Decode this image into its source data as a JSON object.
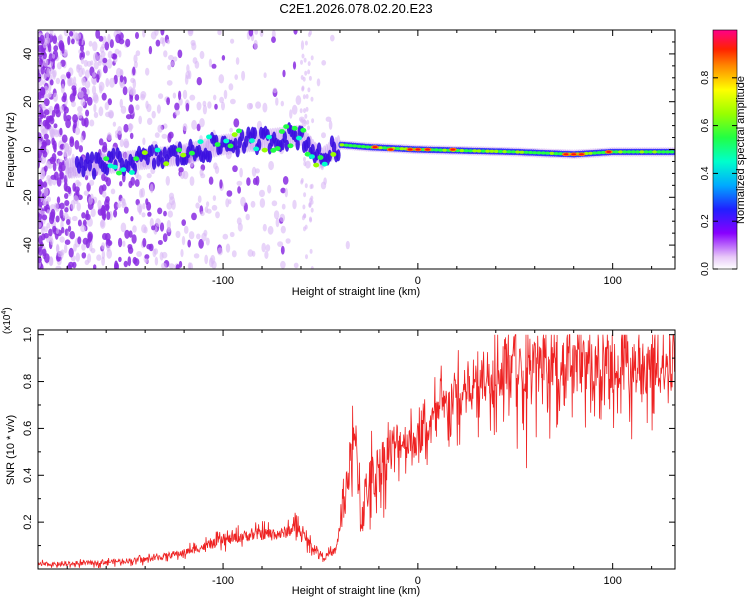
{
  "title": "C2E1.2026.078.02.20.E23",
  "chart_data": [
    {
      "type": "heatmap",
      "name": "spectrogram",
      "xlabel": "Height of straight line (km)",
      "ylabel": "Frequency (Hz)",
      "xlim": [
        -195,
        132
      ],
      "ylim": [
        -50,
        50
      ],
      "xticks": [
        -100,
        0,
        100
      ],
      "yticks": [
        -40,
        -20,
        0,
        20,
        40
      ],
      "ridge": [
        {
          "x": -180,
          "f": -8
        },
        {
          "x": -160,
          "f": -6
        },
        {
          "x": -140,
          "f": -4
        },
        {
          "x": -120,
          "f": -2
        },
        {
          "x": -100,
          "f": 2
        },
        {
          "x": -80,
          "f": 4
        },
        {
          "x": -60,
          "f": 6
        },
        {
          "x": -50,
          "f": -4
        },
        {
          "x": -40,
          "f": 2
        },
        {
          "x": -25,
          "f": 1
        },
        {
          "x": 0,
          "f": 0
        },
        {
          "x": 50,
          "f": -1
        },
        {
          "x": 80,
          "f": -2
        },
        {
          "x": 100,
          "f": -1
        },
        {
          "x": 132,
          "f": -1
        }
      ],
      "colorbar": {
        "label": "Normalized spectral amplitude",
        "range": [
          0.0,
          1.0
        ],
        "ticks": [
          "0.0",
          "0.2",
          "0.4",
          "0.6",
          "0.8"
        ]
      }
    },
    {
      "type": "line",
      "name": "snr",
      "xlabel": "Height of straight line (km)",
      "ylabel": "SNR (10 * v/v)",
      "exponent": "(x10",
      "exponent_power": "4",
      "exponent_close": ")",
      "xlim": [
        -195,
        132
      ],
      "ylim": [
        0,
        1.02
      ],
      "xticks": [
        -100,
        0,
        100
      ],
      "yticks": [
        "0.2",
        "0.4",
        "0.6",
        "0.8",
        "1.0"
      ],
      "color": "#ee2222",
      "x": [
        -195,
        -180,
        -160,
        -140,
        -120,
        -100,
        -90,
        -80,
        -70,
        -62,
        -55,
        -48,
        -42,
        -36,
        -32,
        -29,
        -26,
        -22,
        -15,
        -8,
        0,
        10,
        20,
        30,
        40,
        50,
        60,
        70,
        80,
        90,
        100,
        110,
        120,
        132
      ],
      "y": [
        0.02,
        0.02,
        0.03,
        0.04,
        0.07,
        0.12,
        0.14,
        0.15,
        0.15,
        0.18,
        0.1,
        0.05,
        0.08,
        0.4,
        0.55,
        0.22,
        0.35,
        0.4,
        0.5,
        0.55,
        0.55,
        0.65,
        0.75,
        0.8,
        0.85,
        0.88,
        0.88,
        0.88,
        0.87,
        0.87,
        0.87,
        0.86,
        0.87,
        0.88
      ]
    }
  ]
}
